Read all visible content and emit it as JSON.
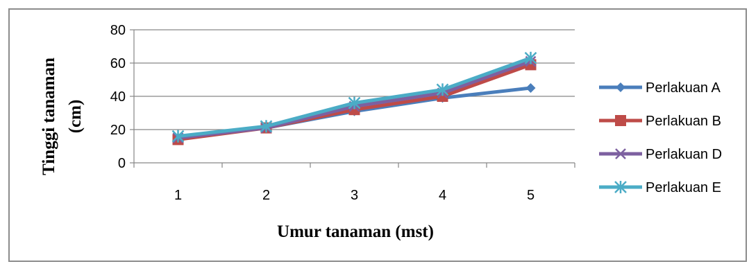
{
  "chart_data": {
    "type": "line",
    "xlabel": "Umur tanaman (mst)",
    "ylabel_lines": [
      "Tinggi tanaman",
      "(cm)"
    ],
    "categories": [
      "1",
      "2",
      "3",
      "4",
      "5"
    ],
    "ylim": [
      0,
      80
    ],
    "yticks": [
      0,
      20,
      40,
      60,
      80
    ],
    "grid": true,
    "legend_position": "right",
    "series": [
      {
        "name": "Perlakuan A",
        "values": [
          15,
          21,
          31,
          39,
          45
        ],
        "color": "#4A7EBB",
        "marker": "diamond"
      },
      {
        "name": "Perlakuan B",
        "values": [
          14,
          21,
          32,
          40,
          59
        ],
        "color": "#BE4B48",
        "marker": "square"
      },
      {
        "name": "Perlakuan D",
        "values": [
          15,
          21,
          34,
          42,
          61
        ],
        "color": "#7D60A0",
        "marker": "x"
      },
      {
        "name": "Perlakuan E",
        "values": [
          16,
          22,
          36,
          44,
          63
        ],
        "color": "#4BACC6",
        "marker": "star"
      }
    ]
  }
}
